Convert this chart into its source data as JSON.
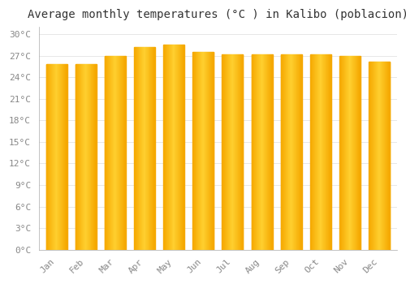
{
  "title": "Average monthly temperatures (°C ) in Kalibo (poblacion)",
  "months": [
    "Jan",
    "Feb",
    "Mar",
    "Apr",
    "May",
    "Jun",
    "Jul",
    "Aug",
    "Sep",
    "Oct",
    "Nov",
    "Dec"
  ],
  "temperatures": [
    25.8,
    25.8,
    27.0,
    28.2,
    28.5,
    27.5,
    27.2,
    27.2,
    27.2,
    27.2,
    27.0,
    26.2
  ],
  "bar_color_center": "#FFD030",
  "bar_color_edge": "#F5A800",
  "ylim": [
    0,
    31
  ],
  "yticks": [
    0,
    3,
    6,
    9,
    12,
    15,
    18,
    21,
    24,
    27,
    30
  ],
  "background_color": "#FFFFFF",
  "grid_color": "#DDDDDD",
  "title_fontsize": 10,
  "tick_fontsize": 8,
  "title_color": "#333333",
  "tick_color": "#888888",
  "bar_width": 0.72
}
